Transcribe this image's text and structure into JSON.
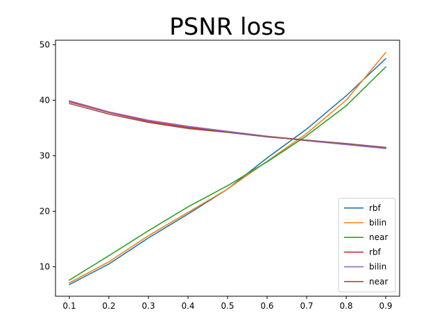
{
  "chart_data": {
    "type": "line",
    "title": "PSNR loss",
    "xlabel": "",
    "ylabel": "",
    "xlim": [
      0.065,
      0.935
    ],
    "ylim": [
      4.7,
      50.8
    ],
    "x": [
      0.1,
      0.2,
      0.3,
      0.4,
      0.5,
      0.6,
      0.7,
      0.8,
      0.9
    ],
    "x_ticks": [
      0.1,
      0.2,
      0.3,
      0.4,
      0.5,
      0.6,
      0.7,
      0.8,
      0.9
    ],
    "x_tick_labels": [
      "0.1",
      "0.2",
      "0.3",
      "0.4",
      "0.5",
      "0.6",
      "0.7",
      "0.8",
      "0.9"
    ],
    "y_ticks": [
      10,
      20,
      30,
      40,
      50
    ],
    "y_tick_labels": [
      "10",
      "20",
      "30",
      "40",
      "50"
    ],
    "grid": false,
    "legend_position": "lower-right",
    "series": [
      {
        "name": "rbf",
        "color": "#1f77b4",
        "values": [
          6.8,
          10.5,
          15.2,
          19.5,
          24.0,
          29.6,
          34.8,
          40.8,
          47.5
        ]
      },
      {
        "name": "bilin",
        "color": "#ff7f0e",
        "values": [
          7.1,
          10.9,
          15.6,
          19.8,
          24.0,
          29.0,
          34.0,
          40.0,
          48.6
        ]
      },
      {
        "name": "near",
        "color": "#2ca02c",
        "values": [
          7.6,
          12.0,
          16.5,
          20.8,
          24.6,
          28.9,
          33.6,
          39.0,
          46.0
        ]
      },
      {
        "name": "rbf",
        "color": "#d62728",
        "values": [
          39.7,
          37.8,
          36.2,
          35.1,
          34.3,
          33.5,
          32.8,
          32.1,
          31.4
        ]
      },
      {
        "name": "bilin",
        "color": "#9467bd",
        "values": [
          39.9,
          37.9,
          36.4,
          35.3,
          34.4,
          33.5,
          32.7,
          32.0,
          31.3
        ]
      },
      {
        "name": "near",
        "color": "#8c564b",
        "values": [
          39.4,
          37.5,
          36.0,
          34.9,
          34.2,
          33.4,
          32.8,
          32.2,
          31.5
        ]
      }
    ]
  }
}
